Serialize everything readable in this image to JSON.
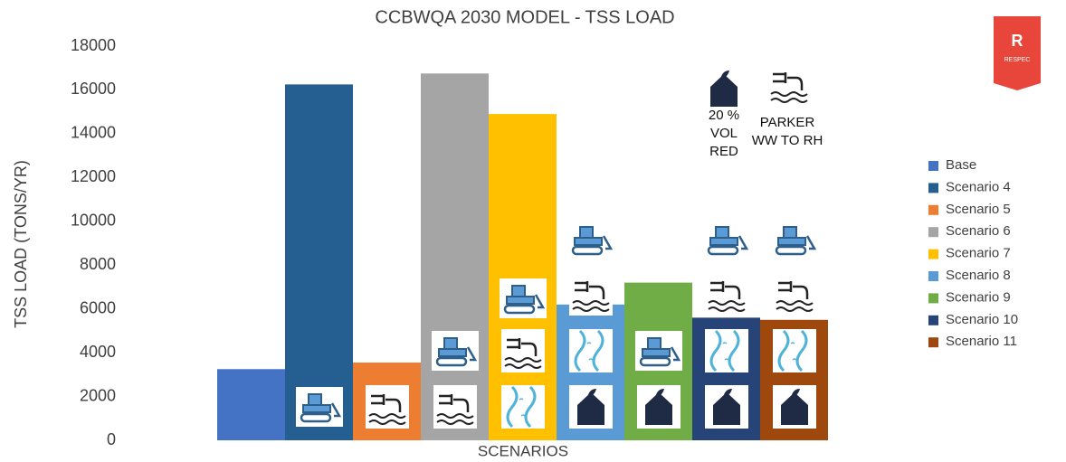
{
  "chart_data": {
    "type": "bar",
    "title": "CCBWQA 2030 MODEL - TSS LOAD",
    "y_label": "TSS LOAD (TONS/YR)",
    "x_label": "SCENARIOS",
    "categories": [
      null
    ],
    "series": [
      {
        "name": "Base",
        "color": "#4472c4",
        "values": [
          3250
        ]
      },
      {
        "name": "Scenario 4",
        "color": "#255e91",
        "values": [
          16250
        ]
      },
      {
        "name": "Scenario 5",
        "color": "#ed7d31",
        "values": [
          3550
        ]
      },
      {
        "name": "Scenario 6",
        "color": "#a5a5a5",
        "values": [
          16750
        ]
      },
      {
        "name": "Scenario 7",
        "color": "#ffc000",
        "values": [
          14900
        ]
      },
      {
        "name": "Scenario 8",
        "color": "#5b9bd5",
        "values": [
          6200
        ]
      },
      {
        "name": "Scenario 9",
        "color": "#70ad47",
        "values": [
          7200
        ]
      },
      {
        "name": "Scenario 10",
        "color": "#264478",
        "values": [
          5600
        ]
      },
      {
        "name": "Scenario 11",
        "color": "#9e480e",
        "values": [
          5500
        ]
      }
    ],
    "ylim": [
      0,
      18000
    ],
    "yticks": [
      0,
      2000,
      4000,
      6000,
      8000,
      10000,
      12000,
      14000,
      16000,
      18000
    ],
    "grid": false,
    "legend": "right",
    "annotations": [
      [
        "20 %",
        "VOL",
        "RED"
      ],
      [
        "PARKER",
        "WW TO RH"
      ]
    ],
    "logo": "RESPEC"
  }
}
